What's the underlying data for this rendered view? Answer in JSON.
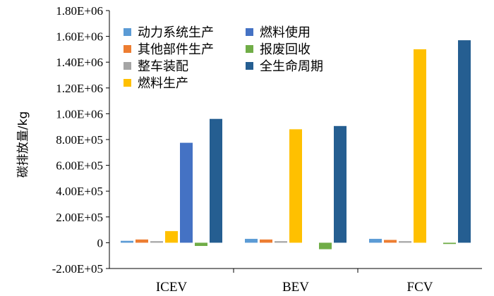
{
  "chart_data": {
    "type": "bar",
    "title": "",
    "xlabel": "",
    "ylabel": "碳排放量/kg",
    "categories": [
      "ICEV",
      "BEV",
      "FCV"
    ],
    "ylim": [
      -200000,
      1800000
    ],
    "yticks": [
      {
        "value": 1800000,
        "label": "1.80E+06"
      },
      {
        "value": 1600000,
        "label": "1.60E+06"
      },
      {
        "value": 1400000,
        "label": "1.40E+06"
      },
      {
        "value": 1200000,
        "label": "1.20E+06"
      },
      {
        "value": 1000000,
        "label": "1.00E+06"
      },
      {
        "value": 800000,
        "label": "8.00E+05"
      },
      {
        "value": 600000,
        "label": "6.00E+05"
      },
      {
        "value": 400000,
        "label": "4.00E+05"
      },
      {
        "value": 200000,
        "label": "2.00E+05"
      },
      {
        "value": 0,
        "label": "0"
      },
      {
        "value": -200000,
        "label": "-2.00E+05"
      }
    ],
    "grid": false,
    "legend_position": "top-left",
    "series": [
      {
        "name": "动力系统生产",
        "color": "#5B9BD5",
        "values": [
          15000,
          30000,
          30000
        ]
      },
      {
        "name": "其他部件生产",
        "color": "#ED7D31",
        "values": [
          25000,
          25000,
          22000
        ]
      },
      {
        "name": "整车装配",
        "color": "#A5A5A5",
        "values": [
          12000,
          12000,
          12000
        ]
      },
      {
        "name": "燃料生产",
        "color": "#FFC000",
        "values": [
          90000,
          880000,
          1500000
        ]
      },
      {
        "name": "燃料使用",
        "color": "#4472C4",
        "values": [
          775000,
          0,
          0
        ]
      },
      {
        "name": "报废回收",
        "color": "#70AD47",
        "values": [
          -25000,
          -50000,
          -10000
        ]
      },
      {
        "name": "全生命周期",
        "color": "#255E91",
        "values": [
          960000,
          905000,
          1570000
        ]
      }
    ]
  }
}
